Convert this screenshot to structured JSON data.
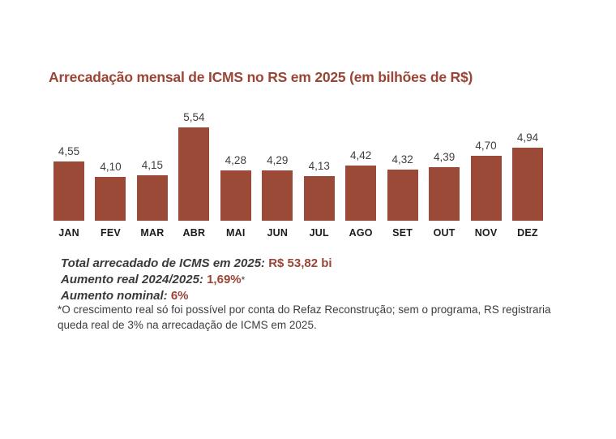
{
  "page": {
    "background": "#ffffff"
  },
  "colors": {
    "bar": "#9c4a38",
    "accent_text": "#9a4536",
    "value_label_text": "#3f3f3f",
    "month_label_text": "#1b1b1b",
    "footnote_text": "#3d3d3d"
  },
  "title": "Arrecadação mensal de ICMS no RS em 2025 (em bilhões de R$)",
  "chart_data": {
    "type": "bar",
    "title": "Arrecadação mensal de ICMS no RS em 2025 (em bilhões de R$)",
    "categories": [
      "JAN",
      "FEV",
      "MAR",
      "ABR",
      "MAI",
      "JUN",
      "JUL",
      "AGO",
      "SET",
      "OUT",
      "NOV",
      "DEZ"
    ],
    "values": [
      4.55,
      4.1,
      4.15,
      5.54,
      4.28,
      4.29,
      4.13,
      4.42,
      4.32,
      4.39,
      4.7,
      4.94
    ],
    "value_labels": [
      "4,55",
      "4,10",
      "4,15",
      "5,54",
      "4,28",
      "4,29",
      "4,13",
      "4,42",
      "4,32",
      "4,39",
      "4,70",
      "4,94"
    ],
    "unit": "R$ bilhões",
    "bar_color": "#9c4a38",
    "xlabel": "",
    "ylabel": "",
    "grid": false,
    "legend": "none"
  },
  "summary": {
    "lines": [
      {
        "label": "Total arrecadado de ICMS em 2025: ",
        "value": "R$ 53,82 bi",
        "note": ""
      },
      {
        "label": "Aumento real 2024/2025: ",
        "value": "1,69%",
        "note": "*"
      },
      {
        "label": "Aumento nominal: ",
        "value": "6%",
        "note": ""
      }
    ]
  },
  "footnote": "*O crescimento real só foi possível por conta do Refaz Reconstrução; sem o programa, RS registraria queda real de 3% na arrecadação de ICMS em 2025."
}
